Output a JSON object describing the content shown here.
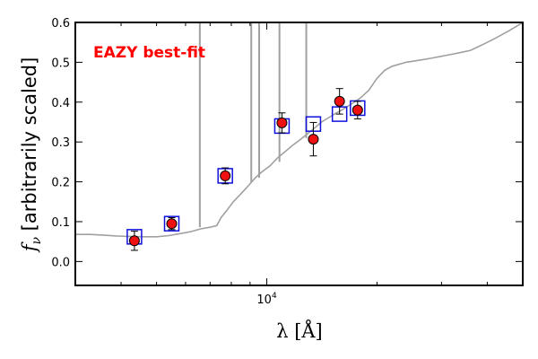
{
  "chart_data": {
    "type": "scatter",
    "title": "",
    "annotation": "EAZY best-fit",
    "annotation_color": "#ff0000",
    "xlabel": "λ [Å]",
    "ylabel": "f_ν [arbitrarily scaled]",
    "x_scale": "log",
    "xlim": [
      3000,
      50000
    ],
    "ylim": [
      -0.06,
      0.6
    ],
    "y_ticks": [
      "0.0",
      "0.1",
      "0.2",
      "0.3",
      "0.4",
      "0.5",
      "0.6"
    ],
    "x_tick_label": "10^4",
    "grid": false,
    "colors": {
      "model": "#a0a0a0",
      "observed_face": "#ee1111",
      "observed_edge": "#000000",
      "model_photometry": "#1010dd"
    },
    "series": [
      {
        "kind": "line",
        "points": [
          [
            3000,
            0.068
          ],
          [
            3300,
            0.068
          ],
          [
            3600,
            0.066
          ],
          [
            3900,
            0.064
          ],
          [
            4200,
            0.063
          ],
          [
            4600,
            0.062
          ],
          [
            5000,
            0.062
          ],
          [
            5400,
            0.065
          ],
          [
            5800,
            0.07
          ],
          [
            6200,
            0.075
          ],
          [
            6600,
            0.082
          ],
          [
            7000,
            0.086
          ],
          [
            7300,
            0.09
          ],
          [
            7500,
            0.11
          ],
          [
            7800,
            0.13
          ],
          [
            8100,
            0.15
          ],
          [
            8500,
            0.17
          ],
          [
            8900,
            0.19
          ],
          [
            9300,
            0.21
          ],
          [
            9700,
            0.225
          ],
          [
            10200,
            0.24
          ],
          [
            10700,
            0.26
          ],
          [
            11200,
            0.275
          ],
          [
            11700,
            0.29
          ],
          [
            12300,
            0.305
          ],
          [
            12900,
            0.32
          ],
          [
            13500,
            0.335
          ],
          [
            14100,
            0.35
          ],
          [
            14700,
            0.36
          ],
          [
            15300,
            0.37
          ],
          [
            16000,
            0.38
          ],
          [
            17000,
            0.395
          ],
          [
            18000,
            0.41
          ],
          [
            19000,
            0.43
          ],
          [
            20000,
            0.46
          ],
          [
            21000,
            0.48
          ],
          [
            22000,
            0.49
          ],
          [
            24000,
            0.5
          ],
          [
            26000,
            0.505
          ],
          [
            28000,
            0.51
          ],
          [
            30000,
            0.515
          ],
          [
            32000,
            0.52
          ],
          [
            34000,
            0.525
          ],
          [
            36000,
            0.53
          ],
          [
            38000,
            0.54
          ],
          [
            40000,
            0.55
          ],
          [
            42000,
            0.56
          ],
          [
            44000,
            0.57
          ],
          [
            46000,
            0.58
          ],
          [
            48000,
            0.59
          ],
          [
            50000,
            0.6
          ]
        ]
      },
      {
        "kind": "emission-lines",
        "lines": [
          [
            6563,
            0.086,
            0.6
          ],
          [
            9069,
            0.2,
            0.6
          ],
          [
            9531,
            0.21,
            0.6
          ],
          [
            10830,
            0.25,
            0.6
          ],
          [
            12818,
            0.31,
            0.6
          ]
        ]
      },
      {
        "kind": "observed",
        "points": [
          {
            "x": 4350,
            "y": 0.052,
            "err": 0.024
          },
          {
            "x": 5500,
            "y": 0.095,
            "err": 0.015
          },
          {
            "x": 7700,
            "y": 0.215,
            "err": 0.02
          },
          {
            "x": 11000,
            "y": 0.348,
            "err": 0.025
          },
          {
            "x": 13400,
            "y": 0.307,
            "err": 0.042
          },
          {
            "x": 15800,
            "y": 0.402,
            "err": 0.032
          },
          {
            "x": 17700,
            "y": 0.38,
            "err": 0.022
          }
        ]
      },
      {
        "kind": "model-photometry",
        "points": [
          {
            "x": 4350,
            "y": 0.062
          },
          {
            "x": 5500,
            "y": 0.095
          },
          {
            "x": 7700,
            "y": 0.215
          },
          {
            "x": 11000,
            "y": 0.34
          },
          {
            "x": 13400,
            "y": 0.345
          },
          {
            "x": 15800,
            "y": 0.37
          },
          {
            "x": 17700,
            "y": 0.385
          }
        ]
      }
    ]
  }
}
